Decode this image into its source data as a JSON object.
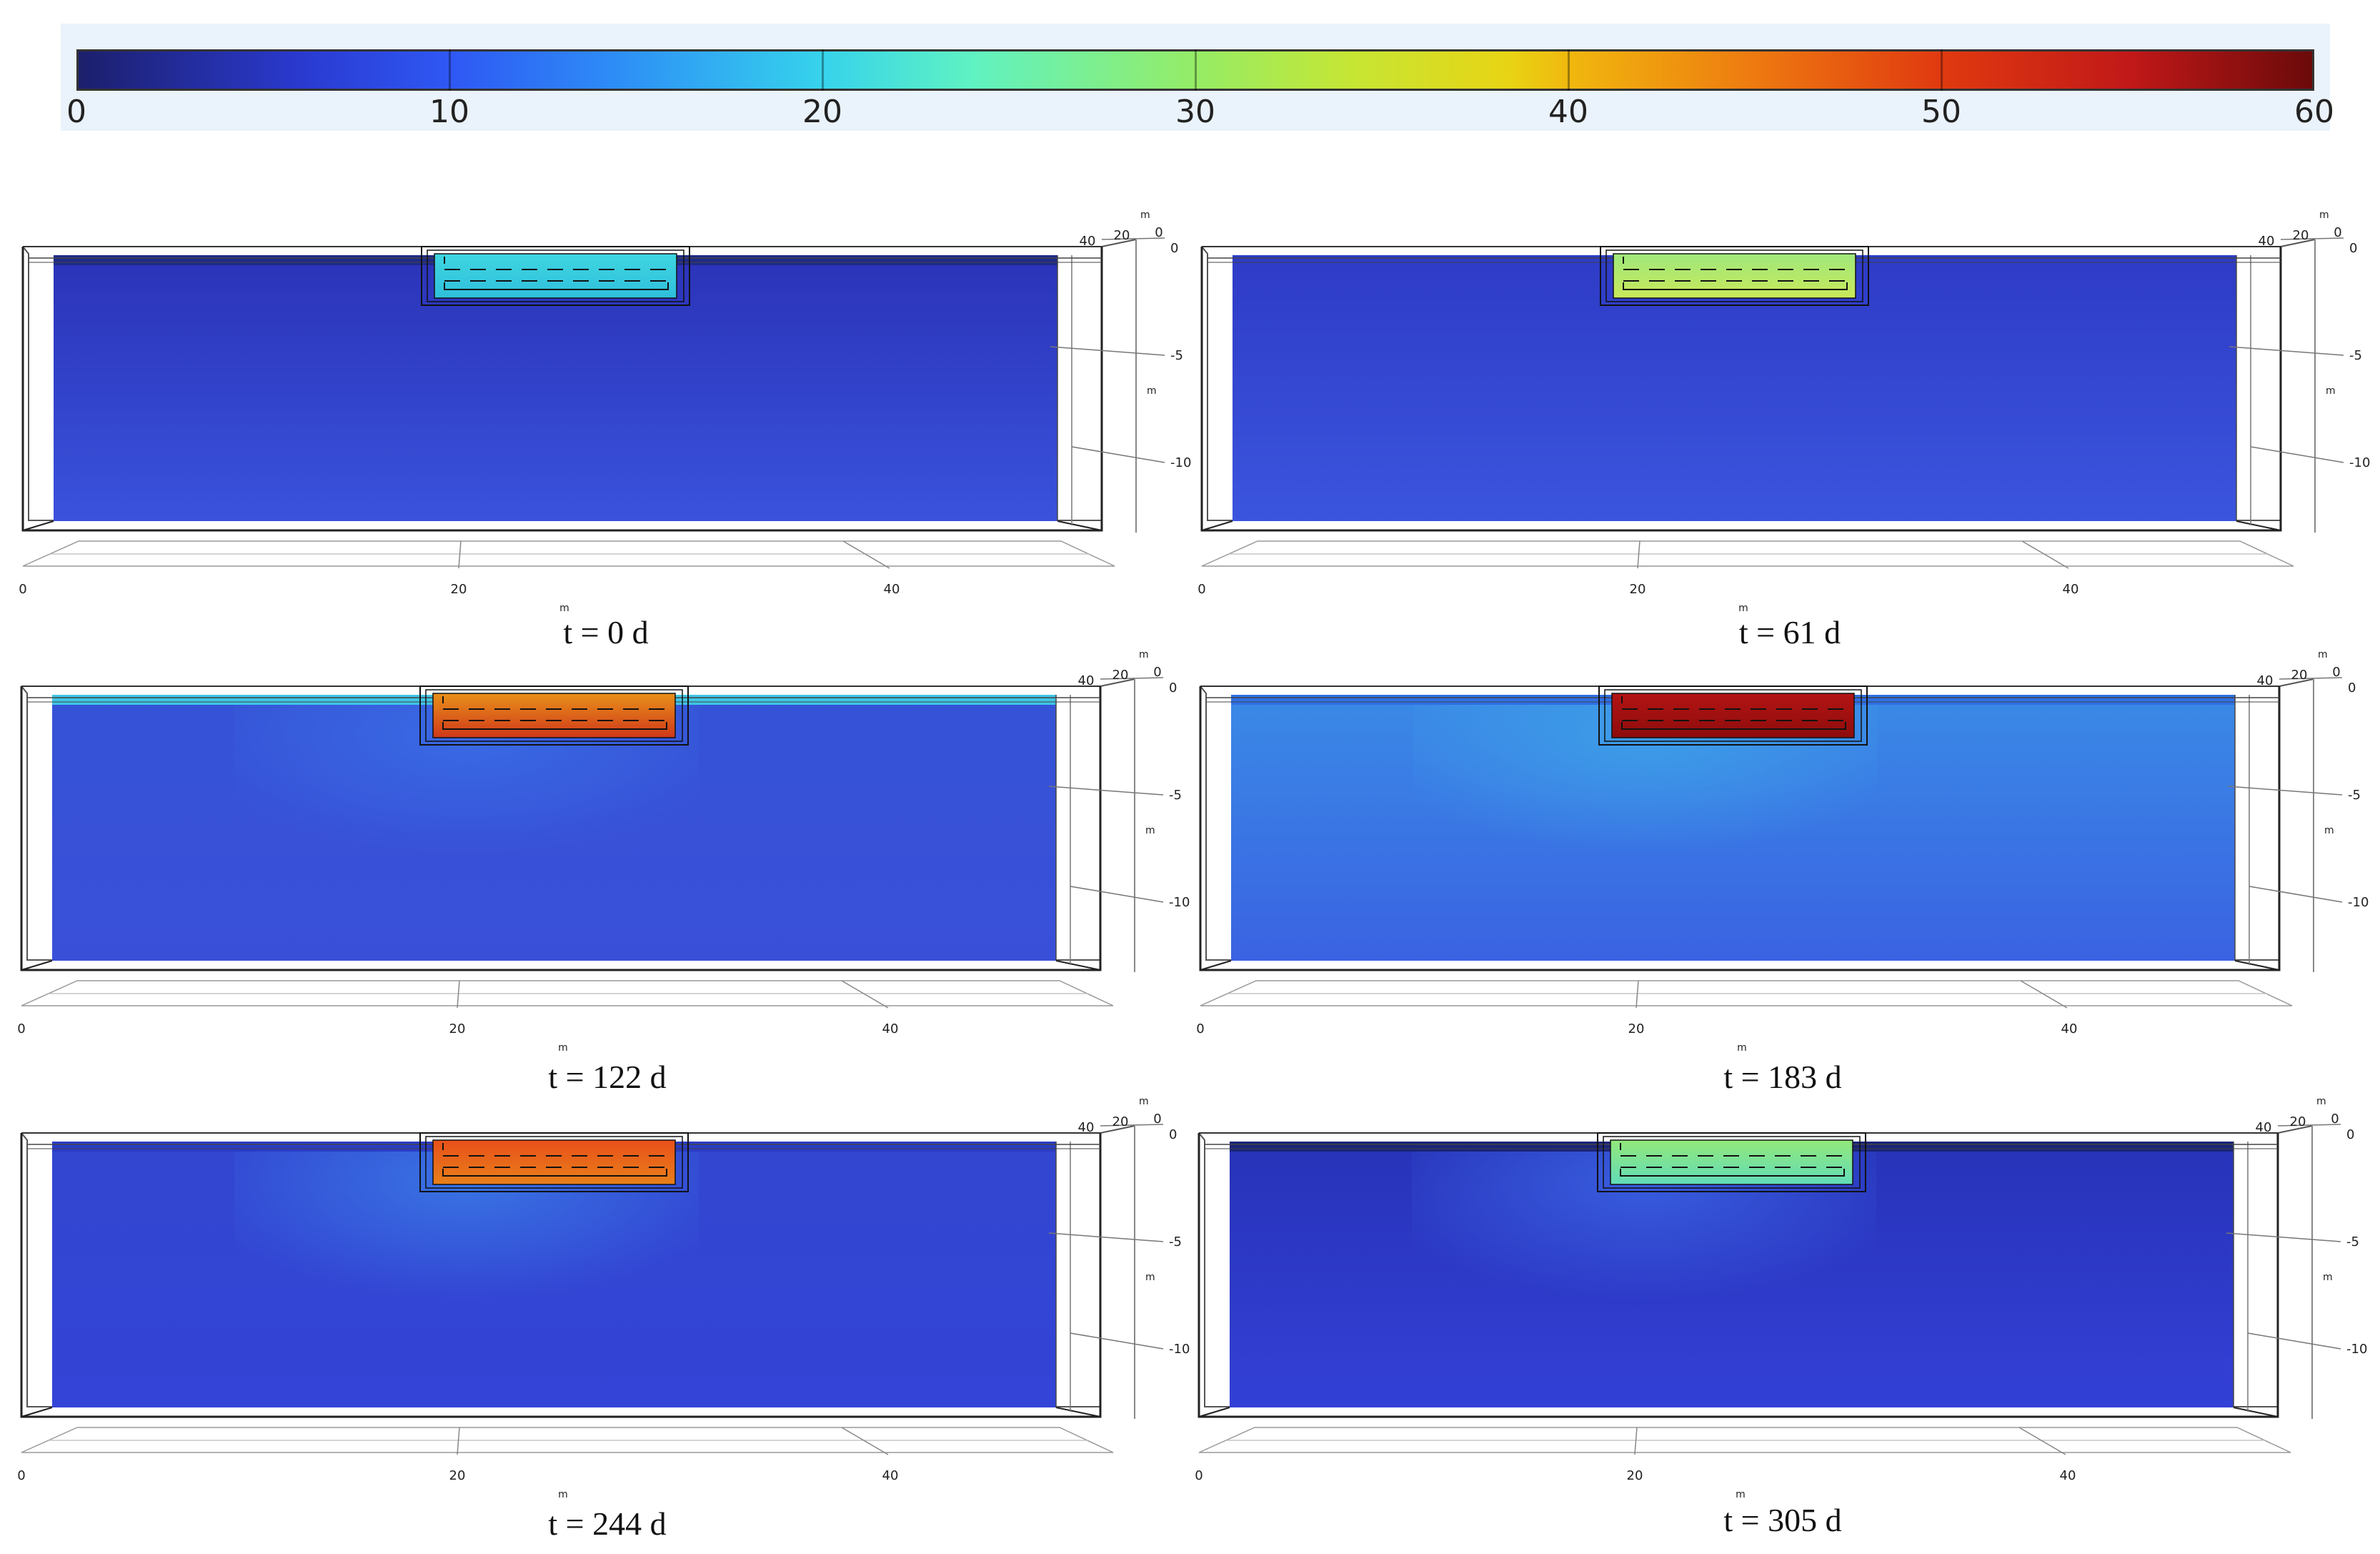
{
  "colorbar": {
    "ticks": [
      {
        "value": 0,
        "label": "0"
      },
      {
        "value": 10,
        "label": "10"
      },
      {
        "value": 20,
        "label": "20"
      },
      {
        "value": 30,
        "label": "30"
      },
      {
        "value": 40,
        "label": "40"
      },
      {
        "value": 50,
        "label": "50"
      },
      {
        "value": 60,
        "label": "60"
      }
    ],
    "min": 0,
    "max": 60
  },
  "axes": {
    "unit": "m",
    "x_ticks": [
      "0",
      "20",
      "40"
    ],
    "depth_ticks": [
      "0",
      "-5",
      "-10"
    ],
    "y_ticks": [
      "40",
      "20",
      "0"
    ]
  },
  "panels": [
    {
      "caption": "t = 0 d",
      "tank_color": "#3fd6e0",
      "tank_edge": "#2fbfdc",
      "surface_color": "#1e2a86",
      "soil_top": "#2a33b8",
      "soil_bottom": "#3a52dc",
      "plume": null
    },
    {
      "caption": "t = 61 d",
      "tank_color": "#9fe87c",
      "tank_edge": "#c9e85a",
      "surface_color": "#2c3cc8",
      "soil_top": "#2e3bc6",
      "soil_bottom": "#3b55de",
      "plume": null
    },
    {
      "caption": "t = 122 d",
      "tank_color": "#e8901a",
      "tank_edge": "#d0381a",
      "surface_color": "#3fc6e6",
      "soil_top": "#3553d6",
      "soil_bottom": "#3a4fd8",
      "plume": "#3a6de6"
    },
    {
      "caption": "t = 183 d",
      "tank_color": "#b31414",
      "tank_edge": "#8e0c0c",
      "surface_color": "#2f6fe6",
      "soil_top": "#3a8ae6",
      "soil_bottom": "#3a62e2",
      "plume": "#3ea0e8"
    },
    {
      "caption": "t = 244 d",
      "tank_color": "#e8501a",
      "tank_edge": "#e8801a",
      "surface_color": "#2a3cc6",
      "soil_top": "#3246d0",
      "soil_bottom": "#3344d6",
      "plume": "#3a78e6"
    },
    {
      "caption": "t = 305 d",
      "tank_color": "#92e87a",
      "tank_edge": "#62dcb8",
      "surface_color": "#1a2478",
      "soil_top": "#2733b8",
      "soil_bottom": "#3340d6",
      "plume": "#3a62e2"
    }
  ]
}
